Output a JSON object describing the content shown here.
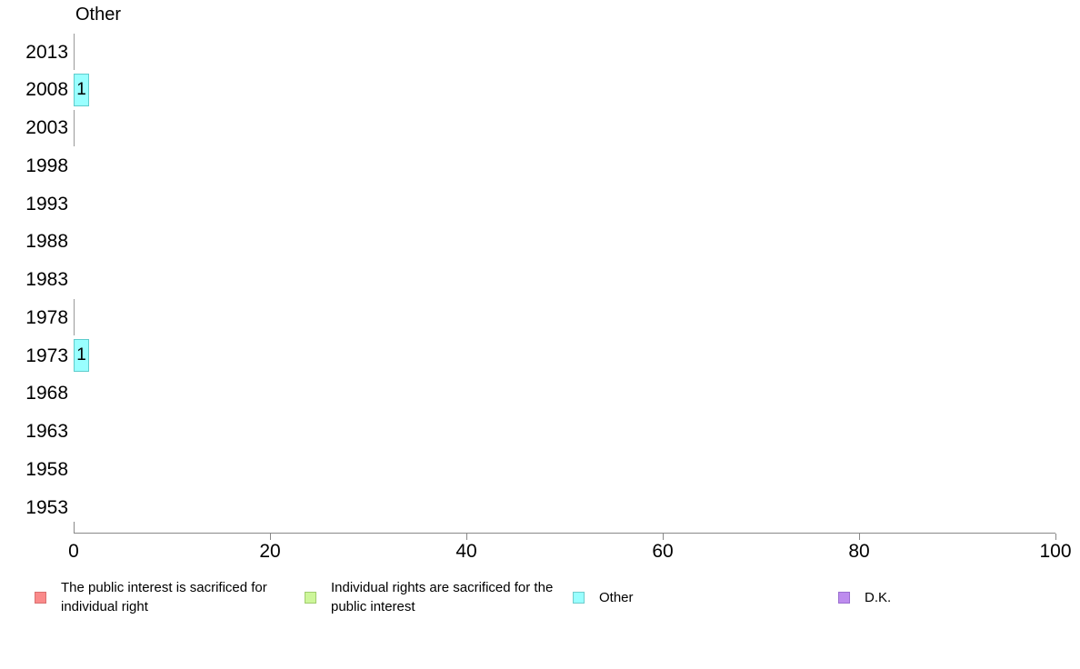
{
  "chart_data": {
    "type": "bar",
    "orientation": "horizontal",
    "title": "Other",
    "categories": [
      "2013",
      "2008",
      "2003",
      "1998",
      "1993",
      "1988",
      "1983",
      "1978",
      "1973",
      "1968",
      "1963",
      "1958",
      "1953"
    ],
    "values": [
      0,
      1,
      0,
      null,
      null,
      null,
      null,
      0,
      1,
      null,
      null,
      null,
      null
    ],
    "bar_labels": [
      "",
      "1",
      "",
      "",
      "",
      "",
      "",
      "",
      "1",
      "",
      "",
      "",
      ""
    ],
    "x_ticks": [
      0,
      20,
      40,
      60,
      80,
      100
    ],
    "xlim": [
      0,
      100
    ],
    "grid": "off",
    "legend_position": "bottom",
    "bar_color": "#99ffff",
    "bar_border_color": "#5fcccc",
    "zero_bar_color": "#999999"
  },
  "legend": {
    "items": [
      {
        "label": "The public interest is sacrificed for individual right",
        "color": "#fa8a8a",
        "border_color": "#d97070"
      },
      {
        "label": "Individual rights are sacrificed for the public interest",
        "color": "#cdf69a",
        "border_color": "#a0cc6e"
      },
      {
        "label": "Other",
        "color": "#99ffff",
        "border_color": "#6fcccc"
      },
      {
        "label": "D.K.",
        "color": "#bd8cee",
        "border_color": "#9a6fd0"
      }
    ]
  }
}
